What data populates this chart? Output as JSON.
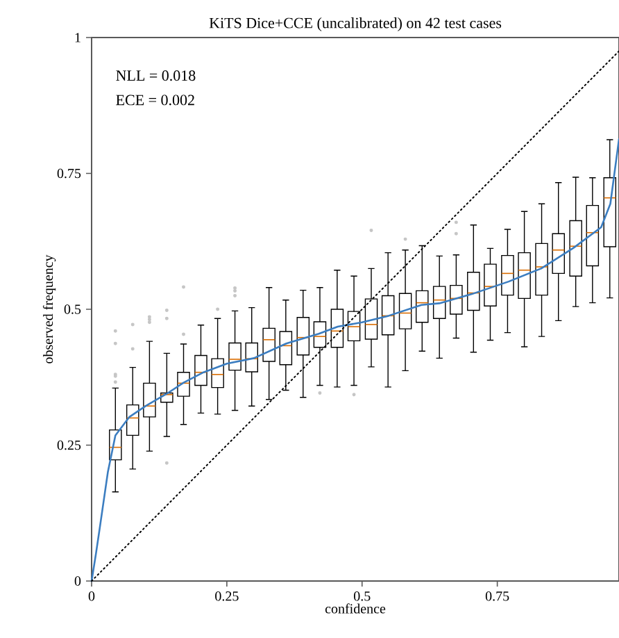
{
  "chart_data": {
    "type": "box",
    "title": "KiTS Dice+CCE (uncalibrated) on 42 test cases",
    "xlabel": "confidence",
    "ylabel": "observed frequency",
    "annotations": [
      "NLL = 0.018",
      "ECE = 0.002"
    ],
    "xlim": [
      0,
      0.975
    ],
    "ylim": [
      0,
      1
    ],
    "xticks": [
      0,
      0.25,
      0.5,
      0.75
    ],
    "yticks": [
      0,
      0.25,
      0.5,
      0.75,
      1
    ],
    "grid": false,
    "marker": "none",
    "series": [
      {
        "color": "#000000",
        "x": [
          0.044,
          0.076,
          0.107,
          0.139,
          0.17,
          0.202,
          0.233,
          0.265,
          0.296,
          0.328,
          0.359,
          0.391,
          0.422,
          0.454,
          0.485,
          0.517,
          0.548,
          0.58,
          0.611,
          0.643,
          0.674,
          0.706,
          0.737,
          0.769,
          0.8,
          0.832,
          0.863,
          0.895,
          0.926,
          0.958
        ],
        "boxes": [
          {
            "low": 0.164,
            "q1": 0.223,
            "median": 0.246,
            "q3": 0.278,
            "high": 0.355,
            "outliers": [
              0.46,
              0.437,
              0.38,
              0.377,
              0.366
            ]
          },
          {
            "low": 0.206,
            "q1": 0.268,
            "median": 0.3,
            "q3": 0.324,
            "high": 0.393,
            "outliers": [
              0.472,
              0.427
            ]
          },
          {
            "low": 0.239,
            "q1": 0.302,
            "median": 0.322,
            "q3": 0.364,
            "high": 0.441,
            "outliers": [
              0.486,
              0.481,
              0.476
            ]
          },
          {
            "low": 0.266,
            "q1": 0.329,
            "median": 0.343,
            "q3": 0.346,
            "high": 0.419,
            "outliers": [
              0.217,
              0.498,
              0.483
            ]
          },
          {
            "low": 0.288,
            "q1": 0.34,
            "median": 0.364,
            "q3": 0.384,
            "high": 0.436,
            "outliers": [
              0.541,
              0.454
            ]
          },
          {
            "low": 0.309,
            "q1": 0.36,
            "median": 0.384,
            "q3": 0.415,
            "high": 0.471
          },
          {
            "low": 0.307,
            "q1": 0.356,
            "median": 0.38,
            "q3": 0.409,
            "high": 0.483,
            "outliers": [
              0.5
            ]
          },
          {
            "low": 0.314,
            "q1": 0.388,
            "median": 0.408,
            "q3": 0.438,
            "high": 0.497,
            "outliers": [
              0.539,
              0.534,
              0.525
            ]
          },
          {
            "low": 0.322,
            "q1": 0.385,
            "median": 0.409,
            "q3": 0.438,
            "high": 0.503
          },
          {
            "low": 0.334,
            "q1": 0.404,
            "median": 0.444,
            "q3": 0.465,
            "high": 0.54
          },
          {
            "low": 0.351,
            "q1": 0.398,
            "median": 0.433,
            "q3": 0.459,
            "high": 0.517
          },
          {
            "low": 0.338,
            "q1": 0.416,
            "median": 0.448,
            "q3": 0.485,
            "high": 0.535
          },
          {
            "low": 0.36,
            "q1": 0.43,
            "median": 0.45,
            "q3": 0.477,
            "high": 0.54,
            "outliers": [
              0.346
            ]
          },
          {
            "low": 0.357,
            "q1": 0.43,
            "median": 0.46,
            "q3": 0.5,
            "high": 0.572
          },
          {
            "low": 0.36,
            "q1": 0.442,
            "median": 0.468,
            "q3": 0.496,
            "high": 0.561,
            "outliers": [
              0.343
            ]
          },
          {
            "low": 0.394,
            "q1": 0.445,
            "median": 0.472,
            "q3": 0.519,
            "high": 0.575,
            "outliers": [
              0.645
            ]
          },
          {
            "low": 0.357,
            "q1": 0.453,
            "median": 0.488,
            "q3": 0.525,
            "high": 0.604
          },
          {
            "low": 0.387,
            "q1": 0.464,
            "median": 0.493,
            "q3": 0.529,
            "high": 0.609,
            "outliers": [
              0.629
            ]
          },
          {
            "low": 0.423,
            "q1": 0.476,
            "median": 0.512,
            "q3": 0.534,
            "high": 0.617
          },
          {
            "low": 0.41,
            "q1": 0.483,
            "median": 0.517,
            "q3": 0.542,
            "high": 0.598
          },
          {
            "low": 0.447,
            "q1": 0.491,
            "median": 0.52,
            "q3": 0.544,
            "high": 0.6,
            "outliers": [
              0.66,
              0.639
            ]
          },
          {
            "low": 0.421,
            "q1": 0.498,
            "median": 0.53,
            "q3": 0.568,
            "high": 0.655
          },
          {
            "low": 0.443,
            "q1": 0.506,
            "median": 0.542,
            "q3": 0.583,
            "high": 0.612
          },
          {
            "low": 0.457,
            "q1": 0.526,
            "median": 0.566,
            "q3": 0.599,
            "high": 0.647
          },
          {
            "low": 0.431,
            "q1": 0.52,
            "median": 0.572,
            "q3": 0.604,
            "high": 0.68
          },
          {
            "low": 0.45,
            "q1": 0.526,
            "median": 0.578,
            "q3": 0.621,
            "high": 0.694
          },
          {
            "low": 0.479,
            "q1": 0.566,
            "median": 0.609,
            "q3": 0.639,
            "high": 0.733
          },
          {
            "low": 0.505,
            "q1": 0.561,
            "median": 0.616,
            "q3": 0.663,
            "high": 0.743
          },
          {
            "low": 0.512,
            "q1": 0.58,
            "median": 0.641,
            "q3": 0.691,
            "high": 0.742
          },
          {
            "low": 0.521,
            "q1": 0.615,
            "median": 0.705,
            "q3": 0.742,
            "high": 0.812
          }
        ]
      },
      {
        "type": "line",
        "color": "#3b7dc0",
        "line_style": "solid",
        "x": [
          0,
          0.008,
          0.015,
          0.03,
          0.044,
          0.07,
          0.1,
          0.138,
          0.17,
          0.207,
          0.25,
          0.3,
          0.36,
          0.42,
          0.455,
          0.5,
          0.549,
          0.61,
          0.643,
          0.703,
          0.771,
          0.831,
          0.891,
          0.942,
          0.959,
          0.975
        ],
        "values": [
          0,
          0.05,
          0.097,
          0.2,
          0.268,
          0.302,
          0.322,
          0.344,
          0.365,
          0.384,
          0.4,
          0.41,
          0.437,
          0.455,
          0.468,
          0.476,
          0.488,
          0.508,
          0.511,
          0.528,
          0.551,
          0.575,
          0.613,
          0.651,
          0.694,
          0.813
        ]
      },
      {
        "type": "line",
        "color": "#000000",
        "line_style": "dotted",
        "x": [
          0,
          0.975
        ],
        "values": [
          0,
          0.975
        ]
      }
    ]
  }
}
